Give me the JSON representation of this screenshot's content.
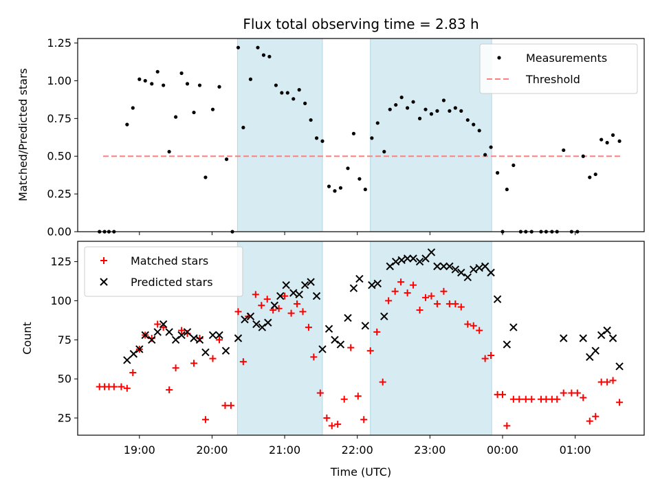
{
  "chart_data": [
    {
      "type": "scatter",
      "title": "Flux total observing time = 2.83 h",
      "xlabel": "",
      "ylabel": "Matched/Predicted stars",
      "ylim": [
        0,
        1.28
      ],
      "yticks": [
        0,
        0.25,
        0.5,
        0.75,
        1.0,
        1.25
      ],
      "ytick_labels": [
        "0.00",
        "0.25",
        "0.50",
        "0.75",
        "1.00",
        "1.25"
      ],
      "x_is_hours_since_midnight_of_first_day": true,
      "xlim_hours": [
        18.15,
        25.95
      ],
      "legend_position": "top-right",
      "legend": [
        "Measurements",
        "Threshold"
      ],
      "shaded_windows_hours": [
        [
          20.35,
          21.52
        ],
        [
          22.18,
          23.85
        ]
      ],
      "threshold": {
        "name": "Threshold",
        "value": 0.5,
        "x_range_hours": [
          18.5,
          25.62
        ],
        "color": "#ff7f7f",
        "style": "dashed"
      },
      "series": [
        {
          "name": "Measurements",
          "color": "#000000",
          "marker": "dot",
          "points": [
            [
              18.45,
              0.0
            ],
            [
              18.52,
              0.0
            ],
            [
              18.58,
              0.0
            ],
            [
              18.65,
              0.0
            ],
            [
              18.83,
              0.71
            ],
            [
              18.91,
              0.82
            ],
            [
              19.0,
              1.01
            ],
            [
              19.08,
              1.0
            ],
            [
              19.17,
              0.98
            ],
            [
              19.25,
              1.06
            ],
            [
              19.33,
              0.97
            ],
            [
              19.41,
              0.53
            ],
            [
              19.5,
              0.76
            ],
            [
              19.58,
              1.05
            ],
            [
              19.66,
              0.98
            ],
            [
              19.75,
              0.79
            ],
            [
              19.83,
              0.97
            ],
            [
              19.91,
              0.36
            ],
            [
              20.01,
              0.81
            ],
            [
              20.1,
              0.96
            ],
            [
              20.2,
              0.48
            ],
            [
              20.28,
              0.0
            ],
            [
              20.36,
              1.22
            ],
            [
              20.43,
              0.69
            ],
            [
              20.53,
              1.01
            ],
            [
              20.63,
              1.22
            ],
            [
              20.71,
              1.17
            ],
            [
              20.79,
              1.16
            ],
            [
              20.88,
              0.97
            ],
            [
              20.96,
              0.92
            ],
            [
              21.04,
              0.92
            ],
            [
              21.12,
              0.88
            ],
            [
              21.2,
              0.94
            ],
            [
              21.28,
              0.85
            ],
            [
              21.36,
              0.74
            ],
            [
              21.44,
              0.62
            ],
            [
              21.52,
              0.6
            ],
            [
              21.61,
              0.3
            ],
            [
              21.69,
              0.27
            ],
            [
              21.77,
              0.29
            ],
            [
              21.87,
              0.42
            ],
            [
              21.95,
              0.65
            ],
            [
              22.03,
              0.35
            ],
            [
              22.11,
              0.28
            ],
            [
              22.2,
              0.62
            ],
            [
              22.28,
              0.72
            ],
            [
              22.37,
              0.53
            ],
            [
              22.45,
              0.81
            ],
            [
              22.53,
              0.84
            ],
            [
              22.61,
              0.89
            ],
            [
              22.69,
              0.82
            ],
            [
              22.77,
              0.86
            ],
            [
              22.86,
              0.75
            ],
            [
              22.94,
              0.81
            ],
            [
              23.02,
              0.78
            ],
            [
              23.1,
              0.8
            ],
            [
              23.19,
              0.87
            ],
            [
              23.27,
              0.8
            ],
            [
              23.35,
              0.82
            ],
            [
              23.43,
              0.8
            ],
            [
              23.52,
              0.74
            ],
            [
              23.6,
              0.71
            ],
            [
              23.68,
              0.67
            ],
            [
              23.76,
              0.51
            ],
            [
              23.84,
              0.56
            ],
            [
              23.93,
              0.39
            ],
            [
              24.0,
              0.0
            ],
            [
              24.06,
              0.28
            ],
            [
              24.15,
              0.44
            ],
            [
              24.25,
              0.0
            ],
            [
              24.32,
              0.0
            ],
            [
              24.4,
              0.0
            ],
            [
              24.53,
              0.0
            ],
            [
              24.6,
              0.0
            ],
            [
              24.68,
              0.0
            ],
            [
              24.75,
              0.0
            ],
            [
              24.84,
              0.54
            ],
            [
              24.95,
              0.0
            ],
            [
              25.03,
              0.0
            ],
            [
              25.11,
              0.5
            ],
            [
              25.2,
              0.36
            ],
            [
              25.28,
              0.38
            ],
            [
              25.36,
              0.61
            ],
            [
              25.44,
              0.59
            ],
            [
              25.52,
              0.64
            ],
            [
              25.61,
              0.6
            ]
          ]
        }
      ]
    },
    {
      "type": "scatter",
      "title": "",
      "xlabel": "Time (UTC)",
      "ylabel": "Count",
      "ylim": [
        14,
        138
      ],
      "yticks": [
        25,
        50,
        75,
        100,
        125
      ],
      "ytick_labels": [
        "25",
        "50",
        "75",
        "100",
        "125"
      ],
      "xlim_hours": [
        18.15,
        25.95
      ],
      "xticks_hours": [
        19,
        20,
        21,
        22,
        23,
        24,
        25
      ],
      "xtick_labels": [
        "19:00",
        "20:00",
        "21:00",
        "22:00",
        "23:00",
        "00:00",
        "01:00"
      ],
      "legend_position": "top-left",
      "legend": [
        "Matched stars",
        "Predicted stars"
      ],
      "shaded_windows_hours": [
        [
          20.35,
          21.52
        ],
        [
          22.18,
          23.85
        ]
      ],
      "series": [
        {
          "name": "Matched stars",
          "color": "#ff0000",
          "marker": "plus",
          "points": [
            [
              18.45,
              45
            ],
            [
              18.52,
              45
            ],
            [
              18.58,
              45
            ],
            [
              18.65,
              45
            ],
            [
              18.75,
              45
            ],
            [
              18.83,
              44
            ],
            [
              18.91,
              54
            ],
            [
              19.0,
              69
            ],
            [
              19.08,
              78
            ],
            [
              19.17,
              76
            ],
            [
              19.25,
              85
            ],
            [
              19.33,
              83
            ],
            [
              19.41,
              43
            ],
            [
              19.5,
              57
            ],
            [
              19.58,
              81
            ],
            [
              19.66,
              79
            ],
            [
              19.75,
              60
            ],
            [
              19.83,
              76
            ],
            [
              19.91,
              24
            ],
            [
              20.01,
              63
            ],
            [
              20.1,
              75
            ],
            [
              20.18,
              33
            ],
            [
              20.26,
              33
            ],
            [
              20.36,
              93
            ],
            [
              20.43,
              61
            ],
            [
              20.5,
              90
            ],
            [
              20.6,
              104
            ],
            [
              20.68,
              97
            ],
            [
              20.76,
              101
            ],
            [
              20.84,
              94
            ],
            [
              20.92,
              95
            ],
            [
              21.0,
              103
            ],
            [
              21.09,
              92
            ],
            [
              21.17,
              98
            ],
            [
              21.25,
              93
            ],
            [
              21.33,
              83
            ],
            [
              21.4,
              64
            ],
            [
              21.49,
              41
            ],
            [
              21.58,
              25
            ],
            [
              21.65,
              20
            ],
            [
              21.73,
              21
            ],
            [
              21.82,
              37
            ],
            [
              21.91,
              70
            ],
            [
              22.01,
              39
            ],
            [
              22.09,
              24
            ],
            [
              22.18,
              68
            ],
            [
              22.27,
              80
            ],
            [
              22.35,
              48
            ],
            [
              22.43,
              100
            ],
            [
              22.52,
              106
            ],
            [
              22.6,
              112
            ],
            [
              22.69,
              105
            ],
            [
              22.77,
              110
            ],
            [
              22.86,
              94
            ],
            [
              22.94,
              102
            ],
            [
              23.02,
              103
            ],
            [
              23.1,
              98
            ],
            [
              23.19,
              106
            ],
            [
              23.27,
              98
            ],
            [
              23.35,
              98
            ],
            [
              23.43,
              96
            ],
            [
              23.52,
              85
            ],
            [
              23.6,
              84
            ],
            [
              23.68,
              81
            ],
            [
              23.76,
              63
            ],
            [
              23.84,
              65
            ],
            [
              23.93,
              40
            ],
            [
              24.0,
              40
            ],
            [
              24.06,
              20
            ],
            [
              24.15,
              37
            ],
            [
              24.23,
              37
            ],
            [
              24.32,
              37
            ],
            [
              24.4,
              37
            ],
            [
              24.53,
              37
            ],
            [
              24.6,
              37
            ],
            [
              24.68,
              37
            ],
            [
              24.75,
              37
            ],
            [
              24.84,
              41
            ],
            [
              24.95,
              41
            ],
            [
              25.03,
              41
            ],
            [
              25.11,
              38
            ],
            [
              25.2,
              23
            ],
            [
              25.28,
              26
            ],
            [
              25.36,
              48
            ],
            [
              25.44,
              48
            ],
            [
              25.52,
              49
            ],
            [
              25.61,
              35
            ]
          ]
        },
        {
          "name": "Predicted stars",
          "color": "#000000",
          "marker": "x",
          "points": [
            [
              18.83,
              62
            ],
            [
              18.92,
              66
            ],
            [
              19.0,
              69
            ],
            [
              19.08,
              78
            ],
            [
              19.17,
              75
            ],
            [
              19.25,
              80
            ],
            [
              19.33,
              85
            ],
            [
              19.41,
              80
            ],
            [
              19.5,
              75
            ],
            [
              19.58,
              78
            ],
            [
              19.66,
              80
            ],
            [
              19.75,
              76
            ],
            [
              19.83,
              75
            ],
            [
              19.91,
              67
            ],
            [
              20.01,
              78
            ],
            [
              20.1,
              78
            ],
            [
              20.19,
              68
            ],
            [
              20.36,
              76
            ],
            [
              20.45,
              88
            ],
            [
              20.53,
              90
            ],
            [
              20.61,
              85
            ],
            [
              20.69,
              83
            ],
            [
              20.77,
              86
            ],
            [
              20.86,
              97
            ],
            [
              20.94,
              103
            ],
            [
              21.02,
              110
            ],
            [
              21.12,
              105
            ],
            [
              21.2,
              104
            ],
            [
              21.28,
              110
            ],
            [
              21.36,
              112
            ],
            [
              21.44,
              103
            ],
            [
              21.52,
              69
            ],
            [
              21.61,
              82
            ],
            [
              21.69,
              75
            ],
            [
              21.77,
              72
            ],
            [
              21.87,
              89
            ],
            [
              21.95,
              108
            ],
            [
              22.03,
              114
            ],
            [
              22.11,
              84
            ],
            [
              22.2,
              110
            ],
            [
              22.28,
              111
            ],
            [
              22.37,
              90
            ],
            [
              22.45,
              122
            ],
            [
              22.53,
              125
            ],
            [
              22.61,
              126
            ],
            [
              22.69,
              127
            ],
            [
              22.77,
              127
            ],
            [
              22.86,
              125
            ],
            [
              22.94,
              127
            ],
            [
              23.02,
              131
            ],
            [
              23.1,
              122
            ],
            [
              23.19,
              122
            ],
            [
              23.27,
              122
            ],
            [
              23.35,
              120
            ],
            [
              23.43,
              118
            ],
            [
              23.52,
              115
            ],
            [
              23.6,
              120
            ],
            [
              23.68,
              121
            ],
            [
              23.76,
              122
            ],
            [
              23.84,
              118
            ],
            [
              23.93,
              101
            ],
            [
              24.06,
              72
            ],
            [
              24.15,
              83
            ],
            [
              24.84,
              76
            ],
            [
              25.11,
              76
            ],
            [
              25.2,
              64
            ],
            [
              25.28,
              68
            ],
            [
              25.36,
              78
            ],
            [
              25.44,
              81
            ],
            [
              25.52,
              76
            ],
            [
              25.61,
              58
            ]
          ]
        }
      ]
    }
  ]
}
